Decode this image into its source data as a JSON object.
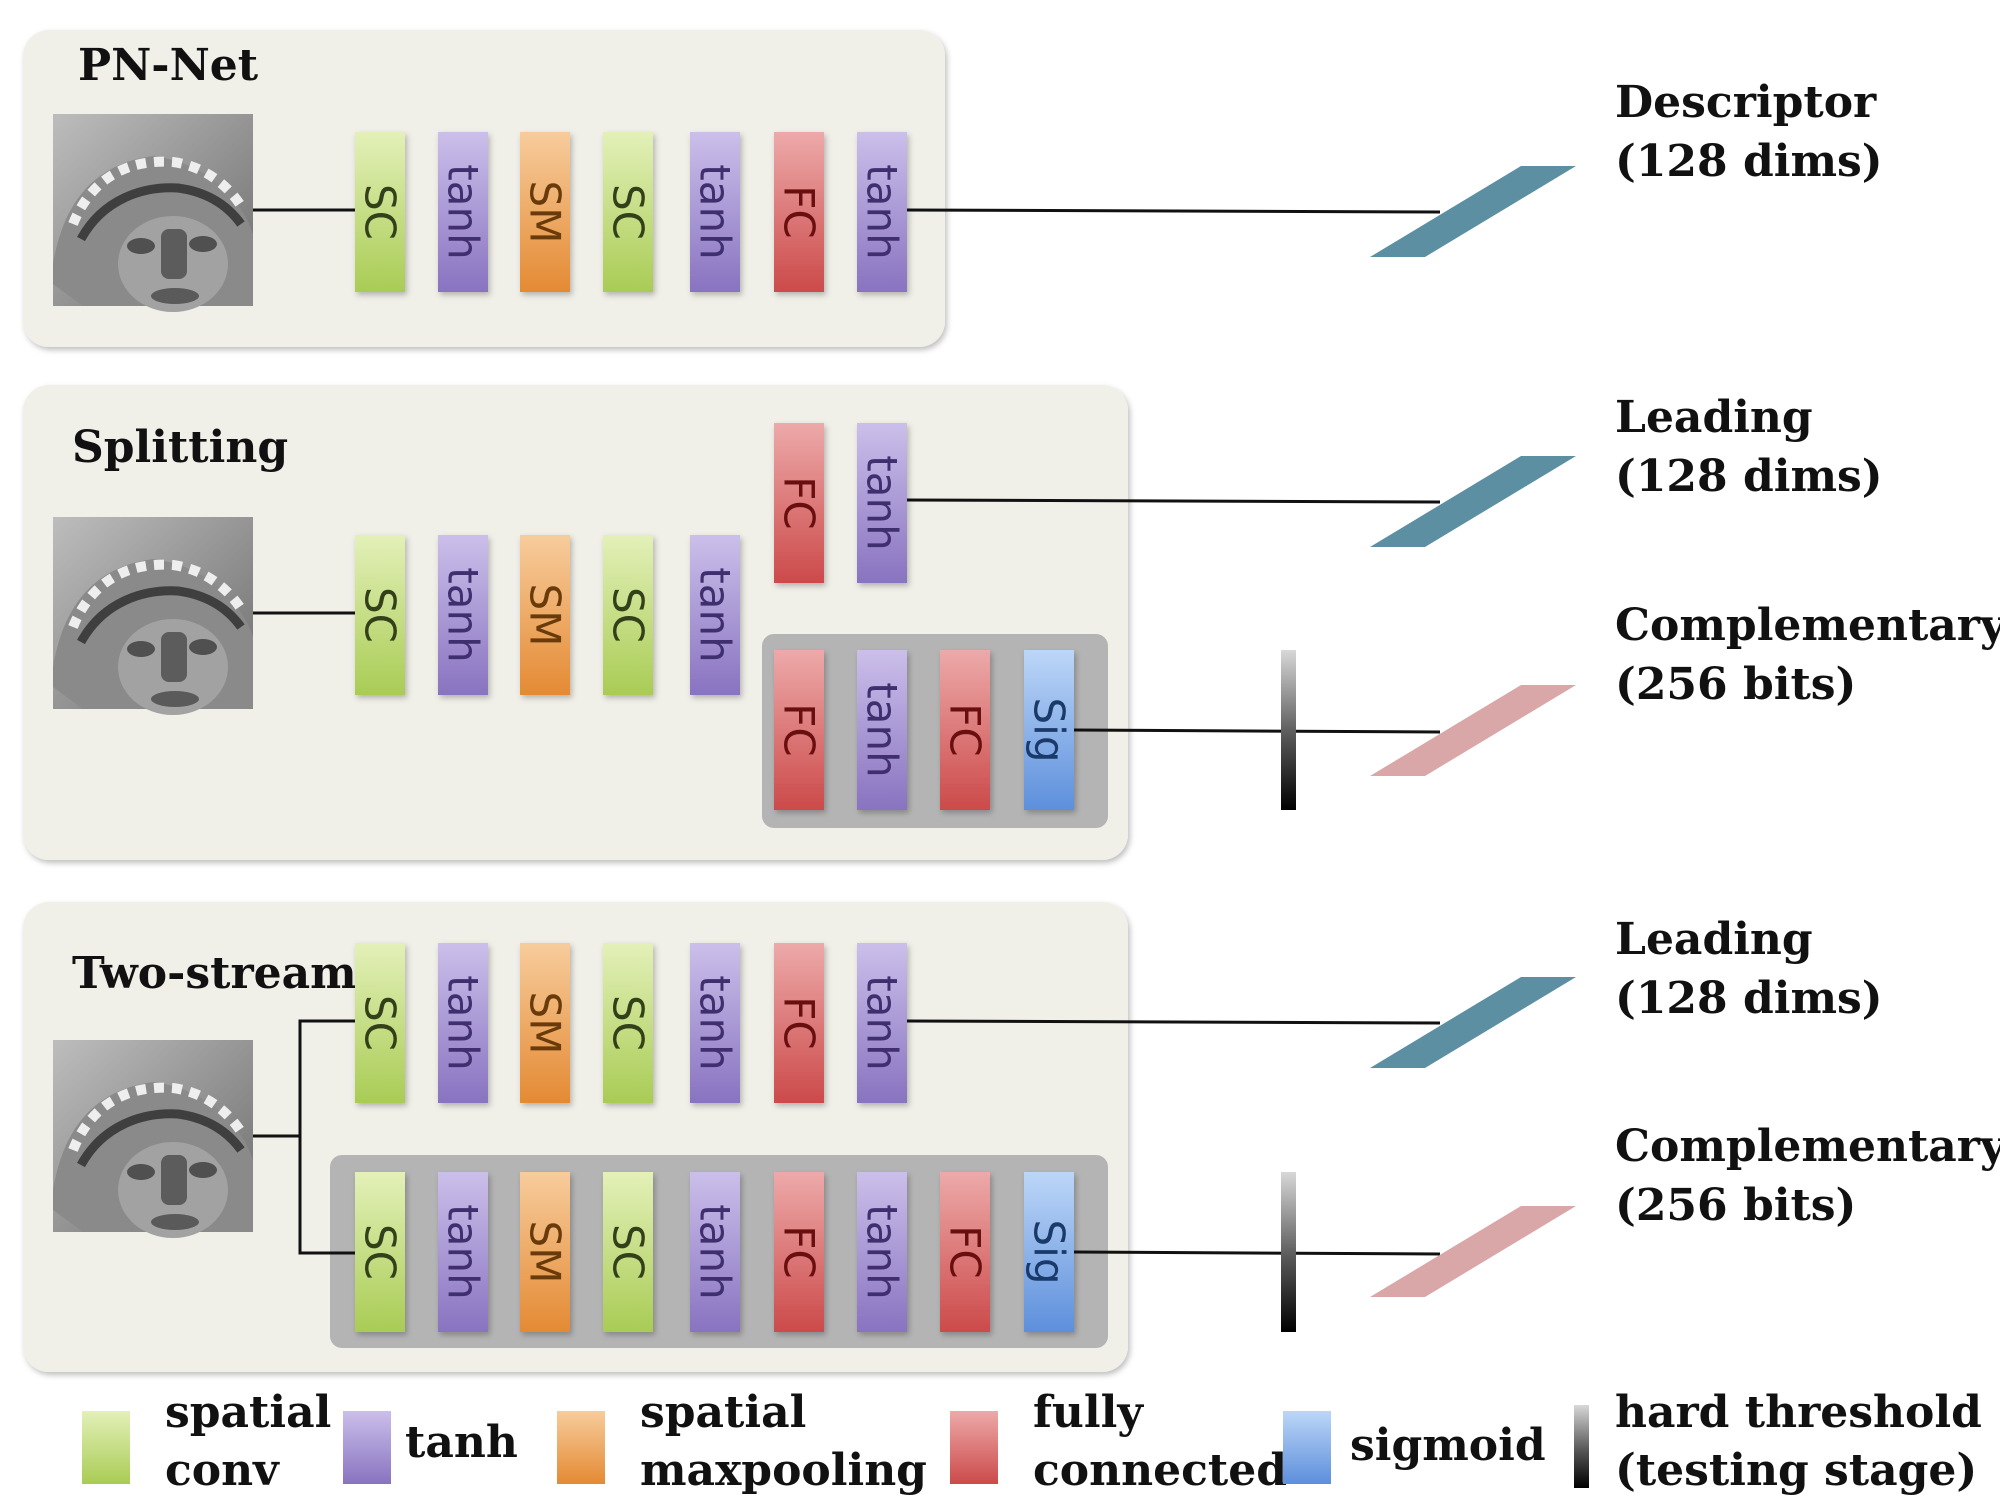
{
  "panels": [
    {
      "title": "PN-Net"
    },
    {
      "title": "Splitting"
    },
    {
      "title": "Two-stream"
    }
  ],
  "layer_labels": {
    "sc": "SC",
    "tanh": "tanh",
    "sm": "SM",
    "fc": "FC",
    "sig": "Sig"
  },
  "outputs": [
    {
      "line1": "Descriptor",
      "line2": "(128 dims)",
      "color": "#5d8fa2"
    },
    {
      "line1": "Leading",
      "line2": "(128 dims)",
      "color": "#5d8fa2"
    },
    {
      "line1": "Complementary",
      "line2": "(256 bits)",
      "color": "#d9a7a7"
    },
    {
      "line1": "Leading",
      "line2": "(128 dims)",
      "color": "#5d8fa2"
    },
    {
      "line1": "Complementary",
      "line2": "(256 bits)",
      "color": "#d9a7a7"
    }
  ],
  "legend": [
    {
      "line1": "spatial",
      "line2": "conv",
      "icon": "spatial-conv-swatch-icon",
      "color": "#c9e07f"
    },
    {
      "line1": "tanh",
      "line2": "",
      "icon": "tanh-swatch-icon",
      "color": "#a08fd0"
    },
    {
      "line1": "spatial",
      "line2": "maxpooling",
      "icon": "spatial-maxpooling-swatch-icon",
      "color": "#f0a55a"
    },
    {
      "line1": "fully",
      "line2": "connected",
      "icon": "fully-connected-swatch-icon",
      "color": "#dd6b6b"
    },
    {
      "line1": "sigmoid",
      "line2": "",
      "icon": "sigmoid-swatch-icon",
      "color": "#87b3ef"
    },
    {
      "line1": "hard threshold",
      "line2": "(testing stage)",
      "icon": "hard-threshold-swatch-icon",
      "color": "#222222"
    }
  ],
  "colors": {
    "panel_bg": "#f0efe8",
    "inner_box": "#b4b4b4",
    "sc": "#c9e07f",
    "tanh": "#a08fd0",
    "sm": "#f0a55a",
    "fc": "#dd6b6b",
    "sig": "#87b3ef",
    "sc_text": "#33401a",
    "tanh_text": "#3f2f6f",
    "sm_text": "#6a3b0a",
    "fc_text": "#6a0f0f",
    "sig_text": "#1a3a6a"
  }
}
